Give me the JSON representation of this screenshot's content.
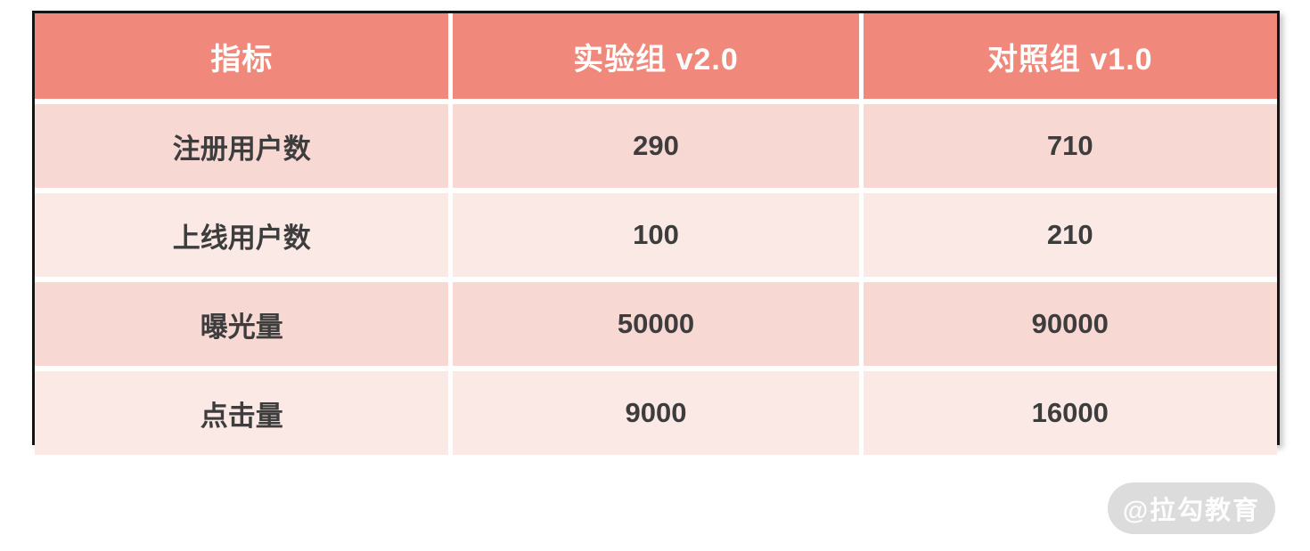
{
  "chart_data": {
    "type": "table",
    "title": "",
    "columns": [
      "指标",
      "实验组 v2.0",
      "对照组 v1.0"
    ],
    "rows": [
      [
        "注册用户数",
        "290",
        "710"
      ],
      [
        "上线用户数",
        "100",
        "210"
      ],
      [
        "曝光量",
        "50000",
        "90000"
      ],
      [
        "点击量",
        "9000",
        "16000"
      ]
    ]
  },
  "watermark": {
    "label": "@拉勾教育"
  },
  "colors": {
    "header_bg": "#F0897B",
    "header_text": "#FFFFFF",
    "row_odd_bg": "#F8D8D3",
    "row_even_bg": "#FBE9E6",
    "body_text": "#3D3D3D",
    "outer_border": "#141414",
    "cell_separator": "#FFFFFF",
    "watermark_bg": "#DCDCDC",
    "watermark_text": "#FDFDFD"
  }
}
